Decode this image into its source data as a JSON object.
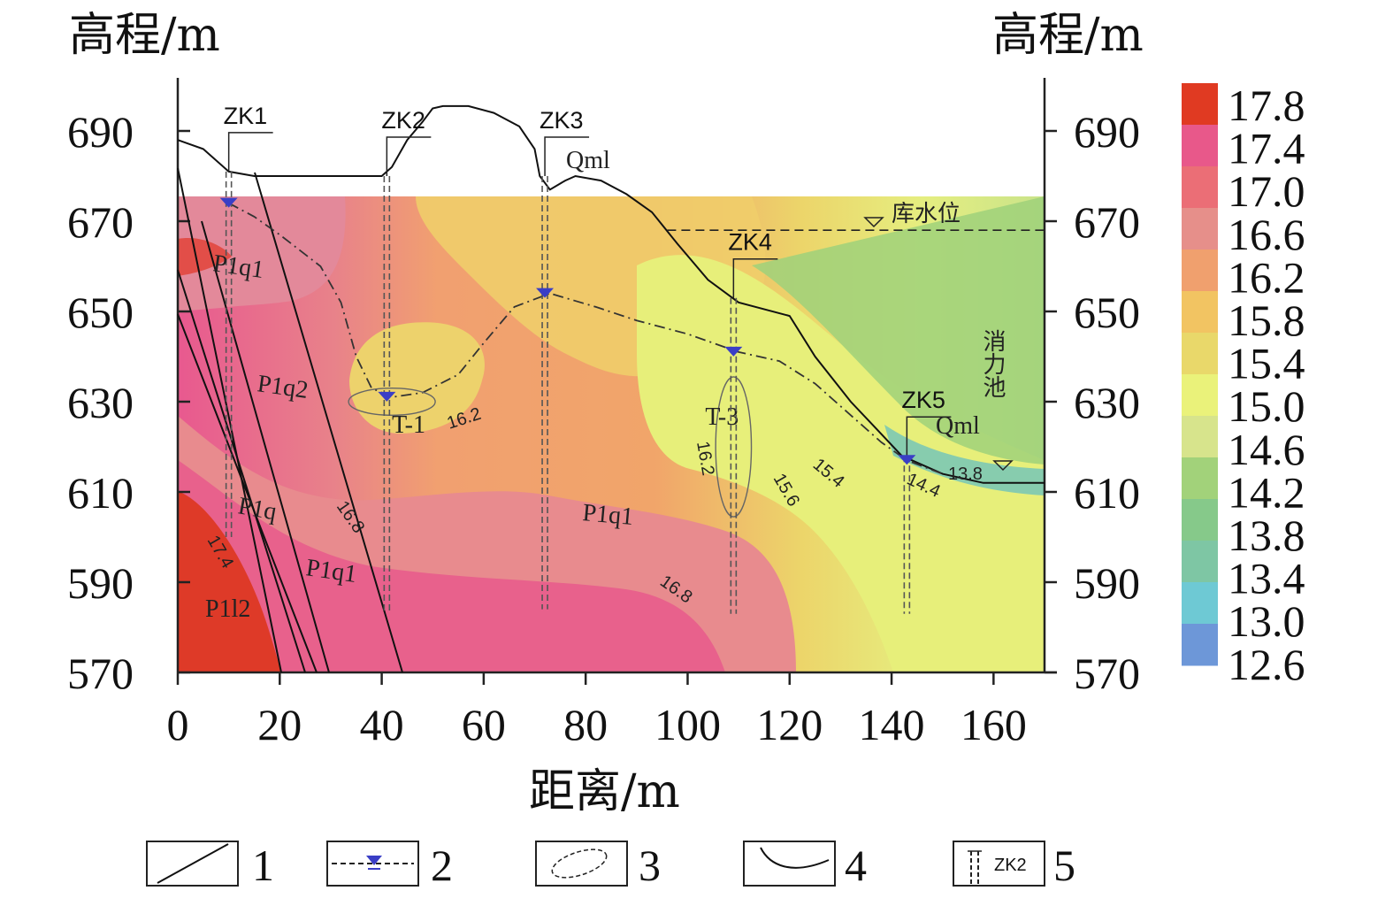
{
  "chart_data": {
    "type": "heatmap",
    "title": "",
    "xlabel": "距离/m",
    "ylabel_left": "高程/m",
    "ylabel_right": "高程/m",
    "xlim": [
      0,
      170
    ],
    "ylim": [
      570,
      702
    ],
    "x_ticks": [
      "0",
      "20",
      "40",
      "60",
      "80",
      "100",
      "120",
      "140",
      "160"
    ],
    "y_ticks": [
      "690",
      "670",
      "650",
      "630",
      "610",
      "590",
      "570"
    ],
    "colorbar": {
      "levels": [
        "17.8",
        "17.4",
        "17.0",
        "16.6",
        "16.2",
        "15.8",
        "15.4",
        "15.0",
        "14.6",
        "14.2",
        "13.8",
        "13.4",
        "13.0",
        "12.6"
      ],
      "colors": [
        "#e03a22",
        "#e8588a",
        "#eb6e76",
        "#e68f8a",
        "#f0a06e",
        "#f2c462",
        "#e9d86a",
        "#eaf27a",
        "#d7e48c",
        "#a2d27a",
        "#86c98a",
        "#7ec6a4",
        "#6ec9d4",
        "#6d97d8"
      ]
    },
    "terrain": [
      [
        0,
        688
      ],
      [
        5,
        686
      ],
      [
        10,
        681
      ],
      [
        15,
        680
      ],
      [
        40,
        680
      ],
      [
        42,
        682
      ],
      [
        45,
        688
      ],
      [
        48,
        692
      ],
      [
        50,
        695
      ],
      [
        52,
        695.5
      ],
      [
        57,
        695.5
      ],
      [
        62,
        694
      ],
      [
        67,
        691
      ],
      [
        70,
        686
      ],
      [
        71,
        680
      ],
      [
        73,
        677
      ],
      [
        76,
        679
      ],
      [
        78,
        680
      ],
      [
        83,
        679
      ],
      [
        88,
        676
      ],
      [
        93,
        672
      ],
      [
        98,
        665
      ],
      [
        104,
        657
      ],
      [
        110,
        652
      ],
      [
        120,
        649
      ],
      [
        125,
        640
      ],
      [
        132,
        630
      ],
      [
        137,
        624
      ],
      [
        142,
        618
      ],
      [
        150,
        614
      ],
      [
        158,
        612
      ],
      [
        170,
        612
      ]
    ],
    "water_table": [
      [
        10,
        674
      ],
      [
        15,
        671
      ],
      [
        20,
        667
      ],
      [
        28,
        660
      ],
      [
        32,
        652
      ],
      [
        35,
        640
      ],
      [
        38,
        633
      ],
      [
        42,
        631
      ],
      [
        48,
        632
      ],
      [
        55,
        636
      ],
      [
        60,
        643
      ],
      [
        66,
        651
      ],
      [
        73,
        654
      ],
      [
        82,
        651
      ],
      [
        90,
        648
      ],
      [
        100,
        645
      ],
      [
        110,
        641
      ],
      [
        118,
        639
      ],
      [
        125,
        634
      ],
      [
        132,
        627
      ],
      [
        138,
        621
      ],
      [
        143,
        617
      ],
      [
        150,
        614
      ]
    ],
    "reservoir_level": 668,
    "boreholes": [
      {
        "name": "ZK1",
        "x": 10,
        "top": 681,
        "bottom": 600,
        "water": 674
      },
      {
        "name": "ZK2",
        "x": 41,
        "top": 680,
        "bottom": 583,
        "water": 631
      },
      {
        "name": "ZK3",
        "x": 72,
        "top": 680,
        "bottom": 584,
        "water": 654
      },
      {
        "name": "ZK4",
        "x": 109,
        "top": 653,
        "bottom": 583,
        "water": 641
      },
      {
        "name": "ZK5",
        "x": 143,
        "top": 618,
        "bottom": 583,
        "water": 617
      }
    ],
    "zones": [
      {
        "label": "T-1",
        "cx": 42,
        "cy": 630,
        "rx": 8.5,
        "ry": 3
      },
      {
        "label": "T-3",
        "cx": 109,
        "cy": 620,
        "rx": 3.5,
        "ry": 15.5
      }
    ],
    "contour_labels": [
      "16.2",
      "16.8",
      "17.4",
      "16.8",
      "16.2",
      "15.6",
      "15.4",
      "14.4",
      "13.8"
    ],
    "stratum_labels": [
      "P1q2",
      "P1q1",
      "P1q",
      "P1q1",
      "P1q1",
      "P1l2"
    ],
    "annotations": [
      "库水位",
      "消力池",
      "Qml",
      "Qml"
    ],
    "legend_items": [
      {
        "symbol": "line",
        "label": "1"
      },
      {
        "symbol": "water-table",
        "label": "2"
      },
      {
        "symbol": "ellipse",
        "label": "3"
      },
      {
        "symbol": "curve",
        "label": "4"
      },
      {
        "symbol": "borehole",
        "label": "5",
        "text": "ZK2"
      }
    ]
  }
}
